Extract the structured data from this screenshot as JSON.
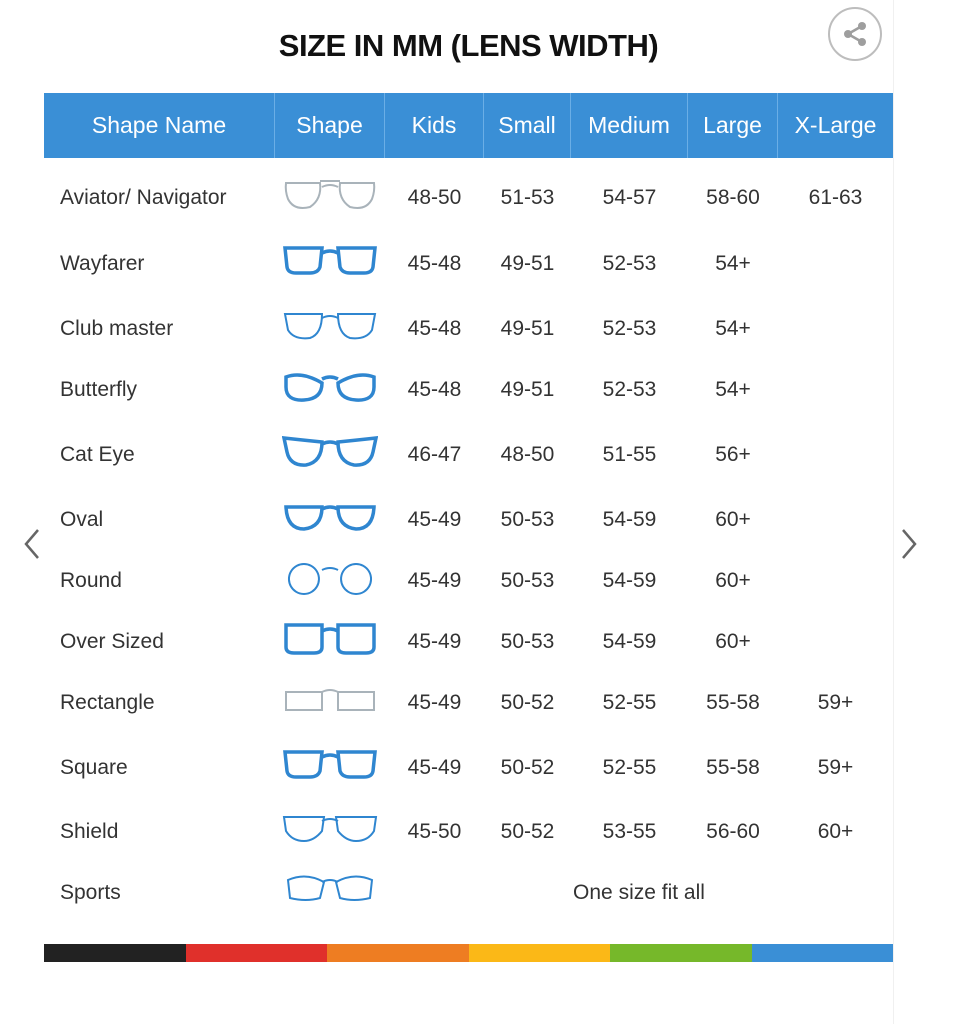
{
  "title": "SIZE IN MM (LENS WIDTH)",
  "share_icon": "share-icon",
  "columns": [
    "Shape Name",
    "Shape",
    "Kids",
    "Small",
    "Medium",
    "Large",
    "X-Large"
  ],
  "colors": {
    "header": "#3a8fd6",
    "frame_blue": "#2f86d0",
    "frame_grey": "#a9b3ba",
    "stripe": [
      "#222222",
      "#e0302b",
      "#ee7d22",
      "#fbb817",
      "#76b82a",
      "#3a8fd6"
    ]
  },
  "rows": [
    {
      "name": "Aviator/ Navigator",
      "icon": "aviator",
      "color": "grey",
      "sizes": [
        "48-50",
        "51-53",
        "54-57",
        "58-60",
        "61-63"
      ]
    },
    {
      "name": "Wayfarer",
      "icon": "wayfarer",
      "color": "blue",
      "sizes": [
        "45-48",
        "49-51",
        "52-53",
        "54+",
        ""
      ]
    },
    {
      "name": "Club master",
      "icon": "clubmaster",
      "color": "mixed",
      "sizes": [
        "45-48",
        "49-51",
        "52-53",
        "54+",
        ""
      ]
    },
    {
      "name": "Butterfly",
      "icon": "butterfly",
      "color": "blue",
      "sizes": [
        "45-48",
        "49-51",
        "52-53",
        "54+",
        ""
      ]
    },
    {
      "name": "Cat Eye",
      "icon": "cateye",
      "color": "blue",
      "sizes": [
        "46-47",
        "48-50",
        "51-55",
        "56+",
        ""
      ]
    },
    {
      "name": "Oval",
      "icon": "oval",
      "color": "blue",
      "sizes": [
        "45-49",
        "50-53",
        "54-59",
        "60+",
        ""
      ]
    },
    {
      "name": "Round",
      "icon": "round",
      "color": "mixed",
      "sizes": [
        "45-49",
        "50-53",
        "54-59",
        "60+",
        ""
      ]
    },
    {
      "name": "Over Sized",
      "icon": "oversized",
      "color": "blue",
      "sizes": [
        "45-49",
        "50-53",
        "54-59",
        "60+",
        ""
      ]
    },
    {
      "name": "Rectangle",
      "icon": "rectangle",
      "color": "grey",
      "sizes": [
        "45-49",
        "50-52",
        "52-55",
        "55-58",
        "59+"
      ]
    },
    {
      "name": "Square",
      "icon": "square",
      "color": "blue",
      "sizes": [
        "45-49",
        "50-52",
        "52-55",
        "55-58",
        "59+"
      ]
    },
    {
      "name": "Shield",
      "icon": "shield",
      "color": "mixed",
      "sizes": [
        "45-50",
        "50-52",
        "53-55",
        "56-60",
        "60+"
      ]
    },
    {
      "name": "Sports",
      "icon": "sports",
      "color": "mixed",
      "span_text": "One size fit all"
    }
  ],
  "nav": {
    "prev_icon": "chevron-left-icon",
    "next_icon": "chevron-right-icon"
  }
}
